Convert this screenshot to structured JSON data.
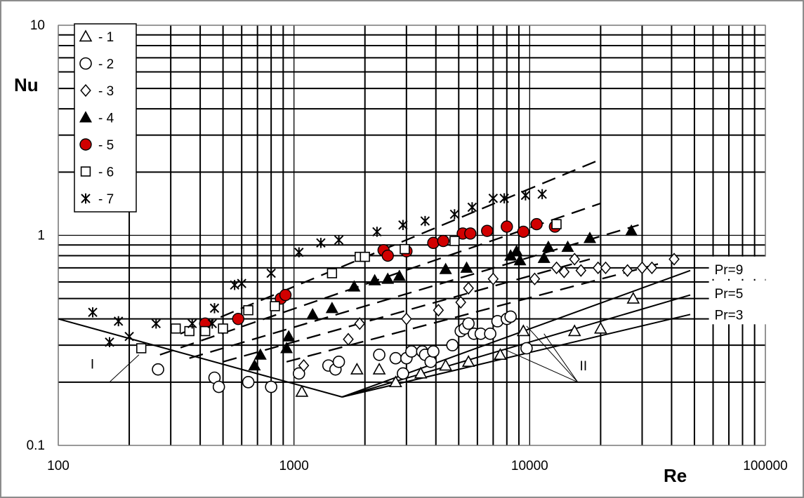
{
  "chart_data": {
    "type": "scatter",
    "xscale": "log",
    "yscale": "log",
    "xlim": [
      100,
      100000
    ],
    "ylim": [
      0.1,
      10
    ],
    "grid": true,
    "legend_position": "top-left",
    "xlabel": "Re",
    "ylabel": "Nu",
    "x_ticks": [
      "100",
      "1000",
      "10000",
      "100000"
    ],
    "y_ticks": [
      "0.1",
      "1",
      "10"
    ],
    "series": [
      {
        "name": "1",
        "marker": "triangle-open",
        "color": "#000000",
        "points": [
          [
            1080,
            0.18
          ],
          [
            1850,
            0.23
          ],
          [
            2300,
            0.23
          ],
          [
            2700,
            0.2
          ],
          [
            3450,
            0.22
          ],
          [
            4400,
            0.24
          ],
          [
            5500,
            0.25
          ],
          [
            7500,
            0.27
          ],
          [
            9400,
            0.35
          ],
          [
            15500,
            0.35
          ],
          [
            20000,
            0.36
          ],
          [
            27500,
            0.5
          ]
        ]
      },
      {
        "name": "2",
        "marker": "circle-open",
        "color": "#000000",
        "points": [
          [
            265,
            0.23
          ],
          [
            460,
            0.21
          ],
          [
            480,
            0.19
          ],
          [
            640,
            0.2
          ],
          [
            800,
            0.19
          ],
          [
            1050,
            0.22
          ],
          [
            1400,
            0.24
          ],
          [
            1500,
            0.23
          ],
          [
            1550,
            0.25
          ],
          [
            2300,
            0.27
          ],
          [
            2700,
            0.26
          ],
          [
            2900,
            0.22
          ],
          [
            3000,
            0.26
          ],
          [
            3150,
            0.28
          ],
          [
            3500,
            0.28
          ],
          [
            3600,
            0.27
          ],
          [
            3800,
            0.25
          ],
          [
            3900,
            0.28
          ],
          [
            4700,
            0.3
          ],
          [
            5100,
            0.35
          ],
          [
            5300,
            0.36
          ],
          [
            5500,
            0.38
          ],
          [
            5800,
            0.34
          ],
          [
            6200,
            0.34
          ],
          [
            6800,
            0.34
          ],
          [
            7300,
            0.39
          ],
          [
            8000,
            0.4
          ],
          [
            8300,
            0.41
          ],
          [
            9700,
            0.29
          ]
        ]
      },
      {
        "name": "3",
        "marker": "diamond-open",
        "color": "#000000",
        "points": [
          [
            1100,
            0.24
          ],
          [
            1700,
            0.32
          ],
          [
            1900,
            0.38
          ],
          [
            3000,
            0.4
          ],
          [
            4100,
            0.44
          ],
          [
            5100,
            0.48
          ],
          [
            5500,
            0.56
          ],
          [
            7000,
            0.62
          ],
          [
            10500,
            0.62
          ],
          [
            13000,
            0.7
          ],
          [
            14000,
            0.67
          ],
          [
            15500,
            0.77
          ],
          [
            16500,
            0.68
          ],
          [
            19500,
            0.7
          ],
          [
            21000,
            0.7
          ],
          [
            26000,
            0.68
          ],
          [
            30000,
            0.7
          ],
          [
            33000,
            0.7
          ],
          [
            41000,
            0.77
          ]
        ]
      },
      {
        "name": "4",
        "marker": "triangle-filled",
        "color": "#000000",
        "points": [
          [
            680,
            0.24
          ],
          [
            720,
            0.27
          ],
          [
            930,
            0.29
          ],
          [
            950,
            0.33
          ],
          [
            1200,
            0.42
          ],
          [
            1450,
            0.45
          ],
          [
            1800,
            0.57
          ],
          [
            2200,
            0.61
          ],
          [
            2500,
            0.62
          ],
          [
            2800,
            0.64
          ],
          [
            4400,
            0.69
          ],
          [
            5400,
            0.7
          ],
          [
            8300,
            0.8
          ],
          [
            8800,
            0.84
          ],
          [
            9100,
            0.76
          ],
          [
            11500,
            0.78
          ],
          [
            12000,
            0.88
          ],
          [
            14500,
            0.88
          ],
          [
            18000,
            0.97
          ],
          [
            27000,
            1.05
          ]
        ]
      },
      {
        "name": "5",
        "marker": "circle-filled",
        "color": "#d10000",
        "points": [
          [
            420,
            0.38
          ],
          [
            580,
            0.4
          ],
          [
            880,
            0.5
          ],
          [
            920,
            0.52
          ],
          [
            2400,
            0.85
          ],
          [
            2500,
            0.8
          ],
          [
            3000,
            0.84
          ],
          [
            3900,
            0.92
          ],
          [
            4300,
            0.94
          ],
          [
            5200,
            1.02
          ],
          [
            5600,
            1.02
          ],
          [
            6600,
            1.05
          ],
          [
            8000,
            1.1
          ],
          [
            9400,
            1.04
          ],
          [
            10700,
            1.13
          ],
          [
            12800,
            1.1
          ]
        ]
      },
      {
        "name": "6",
        "marker": "square-open",
        "color": "#000000",
        "points": [
          [
            225,
            0.29
          ],
          [
            315,
            0.36
          ],
          [
            360,
            0.35
          ],
          [
            420,
            0.35
          ],
          [
            500,
            0.36
          ],
          [
            640,
            0.44
          ],
          [
            830,
            0.46
          ],
          [
            1450,
            0.66
          ],
          [
            1900,
            0.79
          ],
          [
            2000,
            0.79
          ],
          [
            2950,
            0.86
          ],
          [
            4800,
            0.94
          ],
          [
            13000,
            1.13
          ]
        ]
      },
      {
        "name": "7",
        "marker": "asterisk",
        "color": "#000000",
        "points": [
          [
            140,
            0.43
          ],
          [
            165,
            0.31
          ],
          [
            180,
            0.39
          ],
          [
            200,
            0.33
          ],
          [
            260,
            0.38
          ],
          [
            370,
            0.38
          ],
          [
            450,
            0.38
          ],
          [
            460,
            0.45
          ],
          [
            560,
            0.58
          ],
          [
            600,
            0.59
          ],
          [
            800,
            0.66
          ],
          [
            1050,
            0.83
          ],
          [
            1300,
            0.92
          ],
          [
            1550,
            0.95
          ],
          [
            2250,
            1.04
          ],
          [
            2900,
            1.12
          ],
          [
            3600,
            1.17
          ],
          [
            4800,
            1.26
          ],
          [
            5700,
            1.36
          ],
          [
            7000,
            1.5
          ],
          [
            7800,
            1.5
          ],
          [
            9600,
            1.55
          ],
          [
            11300,
            1.57
          ]
        ]
      }
    ],
    "dashed_lines": [
      {
        "x": [
          330,
          20000
        ],
        "y": [
          0.34,
          2.3
        ]
      },
      {
        "x": [
          270,
          20000
        ],
        "y": [
          0.27,
          1.42
        ]
      },
      {
        "x": [
          360,
          29000
        ],
        "y": [
          0.26,
          1.12
        ]
      },
      {
        "x": [
          500,
          18000
        ],
        "y": [
          0.25,
          0.77
        ]
      },
      {
        "x": [
          930,
          35000
        ],
        "y": [
          0.25,
          0.73
        ]
      }
    ],
    "solid_lines": [
      {
        "x": [
          100,
          1600
        ],
        "y": [
          0.4,
          0.17
        ]
      },
      {
        "x": [
          1600,
          48000
        ],
        "y": [
          0.17,
          0.68
        ]
      },
      {
        "x": [
          1600,
          48000
        ],
        "y": [
          0.17,
          0.52
        ]
      },
      {
        "x": [
          1600,
          48000
        ],
        "y": [
          0.17,
          0.42
        ]
      }
    ],
    "annotations": [
      {
        "text": "Pr=9",
        "x": 67000,
        "y": 0.69
      },
      {
        "text": "Pr=5",
        "x": 67000,
        "y": 0.53
      },
      {
        "text": "Pr=3",
        "x": 67000,
        "y": 0.42
      },
      {
        "text": "I",
        "x": 137,
        "y": 0.245
      },
      {
        "text": "II",
        "x": 16300,
        "y": 0.24
      }
    ],
    "annotation_leaders": [
      {
        "x": [
          128,
          165,
          220
        ],
        "y": [
          0.2,
          0.2,
          0.27
        ]
      },
      {
        "x": [
          9700,
          16000,
          20000
        ],
        "y": [
          0.37,
          0.2,
          0.2
        ]
      },
      {
        "x": [
          11500,
          16000
        ],
        "y": [
          0.34,
          0.2
        ]
      },
      {
        "x": [
          7900,
          16000
        ],
        "y": [
          0.285,
          0.2
        ]
      }
    ]
  }
}
